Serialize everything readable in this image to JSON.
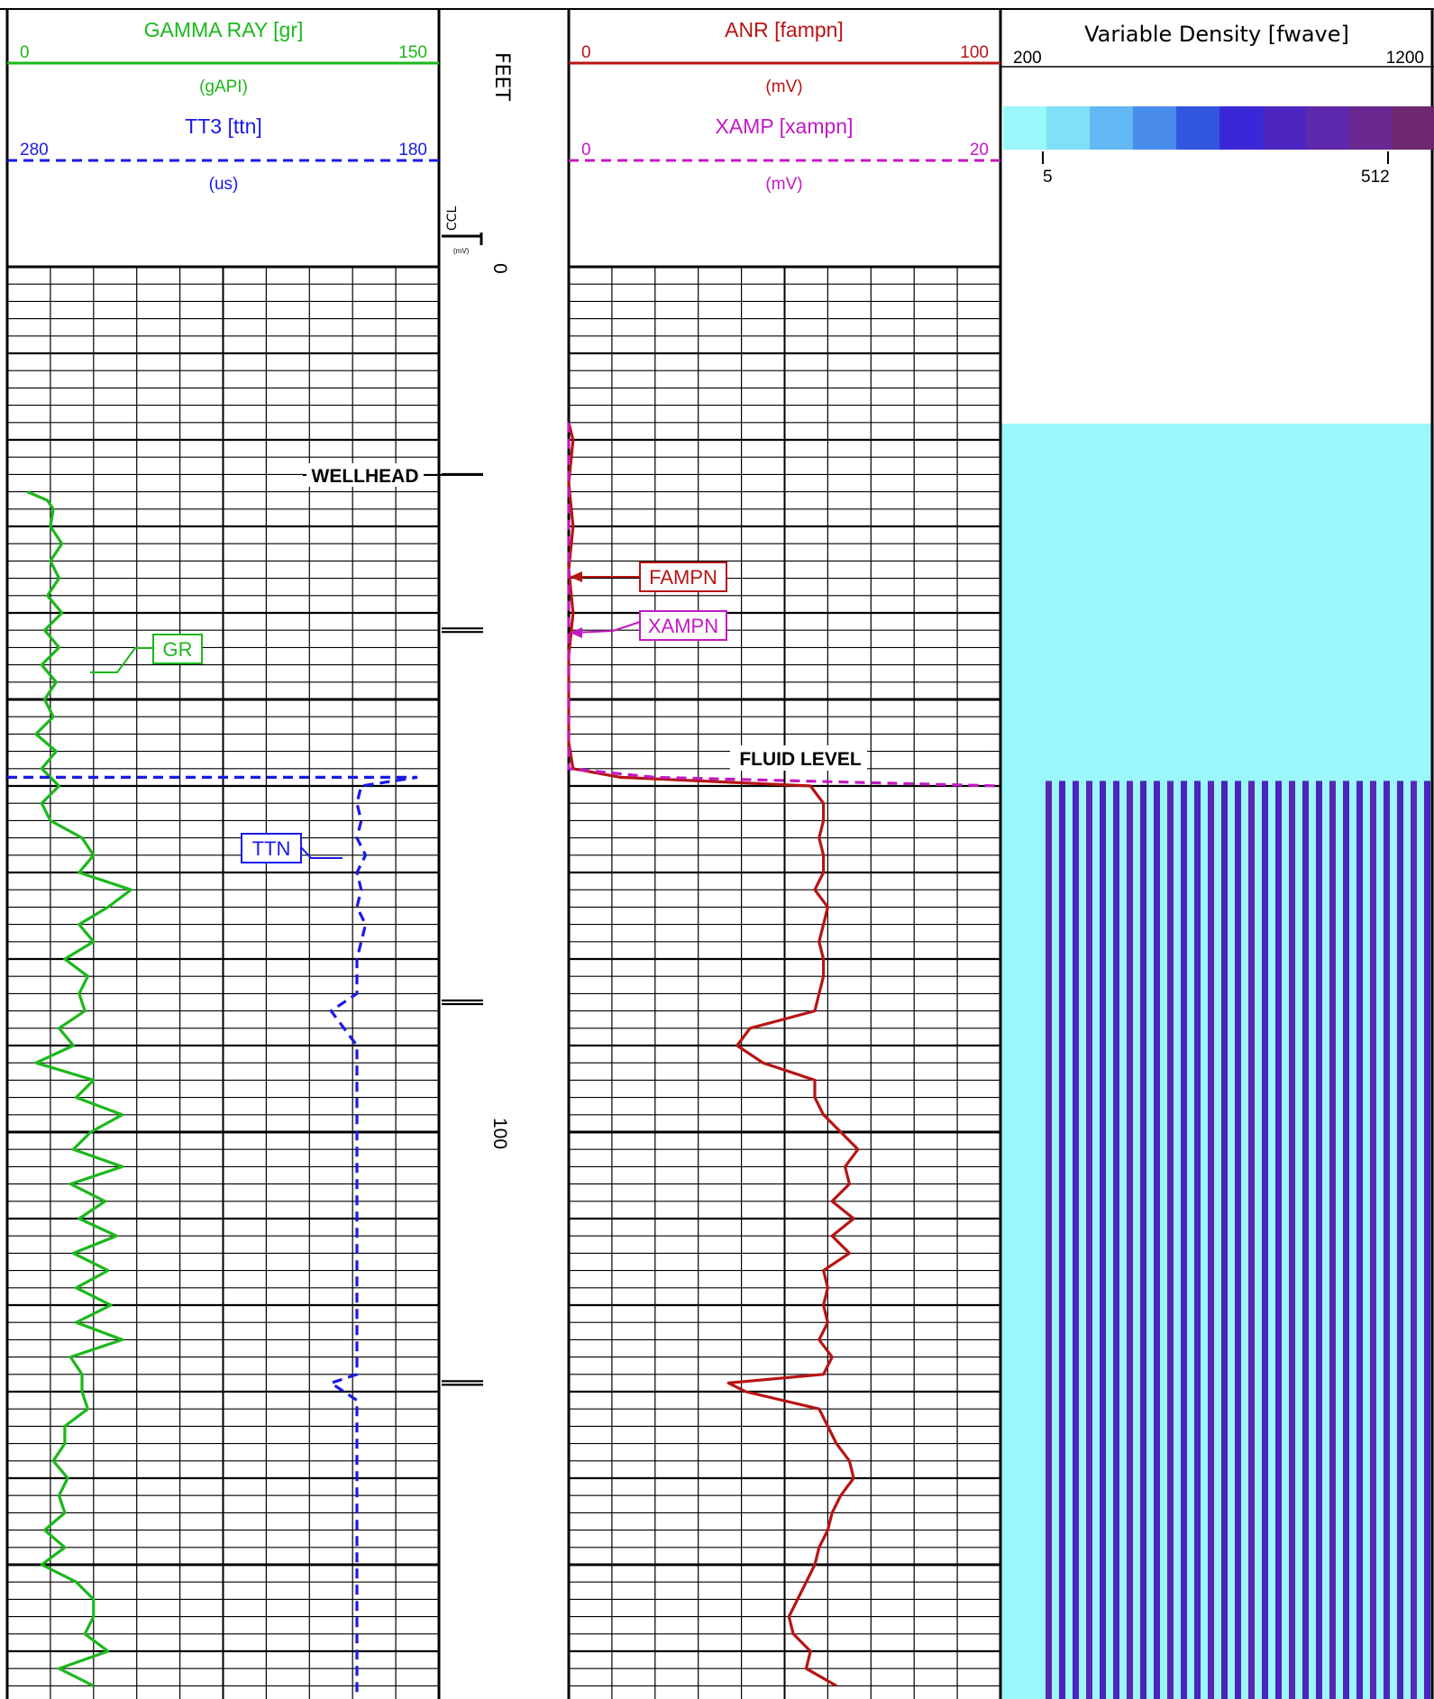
{
  "tracks": {
    "track1": {
      "gr": {
        "title": "GAMMA RAY [gr]",
        "min": "0",
        "max": "150",
        "unit": "(gAPI)",
        "color": "#1bb81b"
      },
      "ttn": {
        "title": "TT3 [ttn]",
        "min": "280",
        "max": "180",
        "unit": "(us)",
        "color": "#1a1ae6"
      }
    },
    "depth": {
      "label": "FEET",
      "ccl_label": "CCL",
      "ccl_unit": "(mV)",
      "ticks": [
        "0",
        "100"
      ]
    },
    "track3": {
      "anr": {
        "title": "ANR [fampn]",
        "min": "0",
        "max": "100",
        "unit": "(mV)",
        "color": "#b81414"
      },
      "xamp": {
        "title": "XAMP [xampn]",
        "min": "0",
        "max": "20",
        "unit": "(mV)",
        "color": "#c21ac2"
      }
    },
    "track4": {
      "title": "Variable Density [fwave]",
      "time_min": "200",
      "time_max": "1200",
      "scale_min": "5",
      "scale_max": "512",
      "palette": [
        "#9af7fa",
        "#7fe0f7",
        "#62b8f2",
        "#4a8cea",
        "#3356e0",
        "#3a28d8",
        "#4e25c0",
        "#5d28ab",
        "#6a2990",
        "#6e2870"
      ]
    }
  },
  "annotations": {
    "wellhead": "WELLHEAD",
    "fluid_level": "FLUID LEVEL",
    "tag_gr": "GR",
    "tag_ttn": "TTN",
    "tag_fampn": "FAMPN",
    "tag_xampn": "XAMPN"
  },
  "chart_data": {
    "type": "line",
    "x_axis_unit": "feet",
    "depth_range": [
      0,
      165
    ],
    "wellhead_depth": 24,
    "fluid_level_depth": 59,
    "collar_depths": [
      42,
      85,
      129
    ],
    "series": [
      {
        "name": "GR",
        "depth": [
          26,
          27,
          28,
          30,
          32,
          34,
          36,
          38,
          40,
          42,
          44,
          46,
          48,
          50,
          52,
          54,
          56,
          58,
          60,
          62,
          64,
          66,
          68,
          70,
          72,
          74,
          76,
          78,
          80,
          82,
          84,
          86,
          88,
          90,
          92,
          94,
          96,
          98,
          100,
          102,
          104,
          106,
          108,
          110,
          112,
          114,
          116,
          118,
          120,
          122,
          124,
          126,
          128,
          130,
          132,
          134,
          136,
          138,
          140,
          142,
          144,
          146,
          148,
          150,
          152,
          154,
          156,
          158,
          160,
          162,
          164
        ],
        "value": [
          7,
          14,
          16,
          15,
          19,
          15,
          18,
          14,
          19,
          13,
          18,
          12,
          17,
          13,
          16,
          10,
          17,
          12,
          18,
          12,
          15,
          26,
          30,
          25,
          43,
          35,
          25,
          30,
          20,
          28,
          25,
          27,
          18,
          23,
          10,
          30,
          24,
          40,
          29,
          23,
          40,
          22,
          34,
          25,
          38,
          23,
          35,
          24,
          36,
          24,
          40,
          22,
          26,
          26,
          28,
          20,
          20,
          16,
          21,
          18,
          20,
          13,
          20,
          12,
          24,
          30,
          30,
          27,
          35,
          18,
          30
        ]
      },
      {
        "name": "TTN",
        "depth": [
          59,
          60,
          62,
          64,
          66,
          68,
          70,
          72,
          74,
          76,
          78,
          80,
          82,
          84,
          86,
          88,
          90,
          100,
          110,
          120,
          128,
          129,
          130,
          131,
          140,
          150,
          160,
          165
        ],
        "value": [
          185,
          198,
          199,
          198,
          199,
          197,
          199,
          198,
          199,
          197,
          198,
          199,
          199,
          199,
          205,
          202,
          199,
          199,
          199,
          199,
          199,
          205,
          202,
          199,
          199,
          199,
          199,
          199
        ]
      },
      {
        "name": "ANR",
        "depth": [
          18,
          20,
          25,
          30,
          35,
          40,
          45,
          50,
          55,
          58,
          59,
          60,
          62,
          64,
          66,
          68,
          70,
          72,
          74,
          76,
          78,
          80,
          82,
          84,
          86,
          88,
          90,
          92,
          94,
          96,
          98,
          100,
          102,
          104,
          106,
          108,
          110,
          112,
          114,
          116,
          118,
          120,
          122,
          124,
          126,
          128,
          129,
          130,
          132,
          134,
          136,
          138,
          140,
          142,
          144,
          146,
          148,
          150,
          152,
          154,
          156,
          158,
          160,
          162,
          164
        ],
        "value": [
          0,
          1,
          0,
          1,
          0,
          1,
          0,
          0,
          0,
          1,
          12,
          56,
          59,
          59,
          58,
          59,
          59,
          57,
          60,
          59,
          58,
          59,
          59,
          58,
          57,
          42,
          39,
          45,
          57,
          57,
          59,
          63,
          67,
          64,
          65,
          61,
          66,
          61,
          65,
          59,
          60,
          59,
          60,
          58,
          61,
          59,
          37,
          41,
          58,
          60,
          62,
          65,
          66,
          63,
          61,
          60,
          58,
          57,
          55,
          53,
          51,
          52,
          56,
          55,
          62
        ]
      },
      {
        "name": "XAMPN",
        "depth": [
          18,
          20,
          25,
          30,
          35,
          40,
          45,
          50,
          55,
          58,
          59,
          60
        ],
        "value": [
          0,
          0,
          0,
          0,
          0,
          0,
          0,
          0,
          0,
          0,
          4,
          20
        ]
      }
    ]
  }
}
